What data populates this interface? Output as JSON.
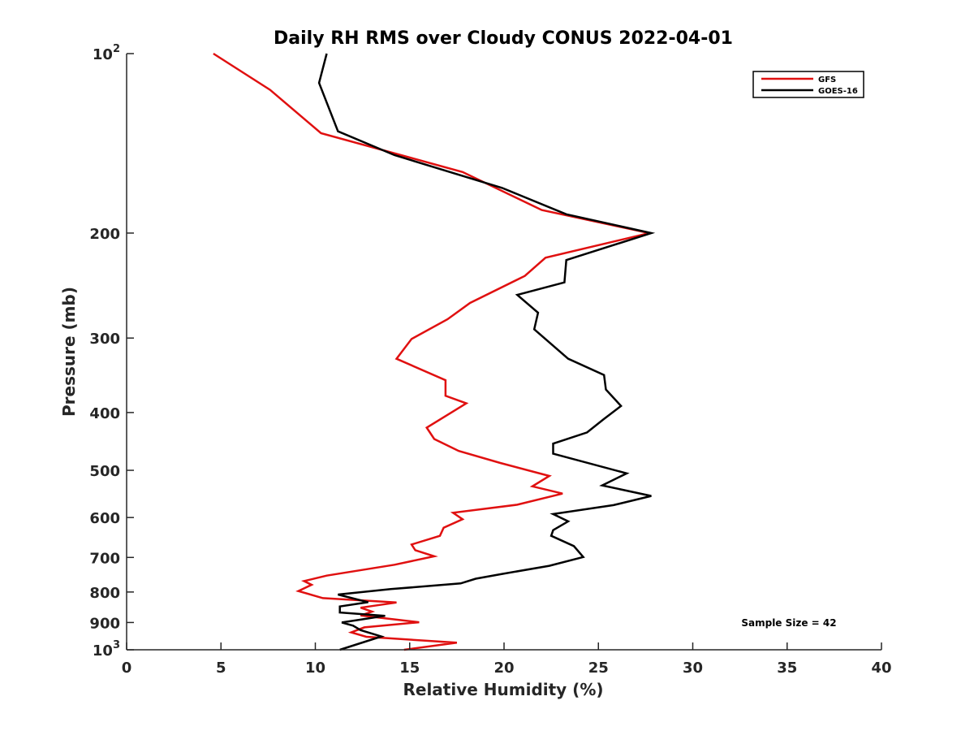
{
  "chart_data": {
    "type": "line",
    "title": "Daily RH RMS over Cloudy CONUS 2022-04-01",
    "xlabel": "Relative Humidity (%)",
    "ylabel": "Pressure (mb)",
    "xlim": [
      0,
      40
    ],
    "ylim": [
      100,
      1000
    ],
    "y_scale": "log",
    "y_reversed": true,
    "grid": false,
    "legend_position": "top-right",
    "annotation": "Sample Size = 42",
    "x_ticks": [
      "0",
      "5",
      "10",
      "15",
      "20",
      "25",
      "30",
      "35",
      "40"
    ],
    "x_tick_values": [
      0,
      5,
      10,
      15,
      20,
      25,
      30,
      35,
      40
    ],
    "y_ticks": [
      {
        "value": 100,
        "base": "10",
        "sup": "2"
      },
      {
        "value": 200,
        "base": "200",
        "sup": ""
      },
      {
        "value": 300,
        "base": "300",
        "sup": ""
      },
      {
        "value": 400,
        "base": "400",
        "sup": ""
      },
      {
        "value": 500,
        "base": "500",
        "sup": ""
      },
      {
        "value": 600,
        "base": "600",
        "sup": ""
      },
      {
        "value": 700,
        "base": "700",
        "sup": ""
      },
      {
        "value": 800,
        "base": "800",
        "sup": ""
      },
      {
        "value": 900,
        "base": "900",
        "sup": ""
      },
      {
        "value": 1000,
        "base": "10",
        "sup": "3"
      }
    ],
    "series": [
      {
        "name": "GFS",
        "color": "#e01010",
        "points": [
          [
            4.6,
            100
          ],
          [
            7.6,
            115
          ],
          [
            10.3,
            136
          ],
          [
            17.8,
            158
          ],
          [
            22.0,
            183
          ],
          [
            27.7,
            200
          ],
          [
            22.2,
            220
          ],
          [
            21.1,
            236
          ],
          [
            18.2,
            262
          ],
          [
            17.0,
            279
          ],
          [
            15.1,
            301
          ],
          [
            14.3,
            325
          ],
          [
            16.9,
            353
          ],
          [
            16.9,
            375
          ],
          [
            18.0,
            386
          ],
          [
            15.9,
            424
          ],
          [
            16.3,
            443
          ],
          [
            17.6,
            464
          ],
          [
            19.8,
            486
          ],
          [
            22.4,
            511
          ],
          [
            21.5,
            532
          ],
          [
            23.1,
            547
          ],
          [
            20.7,
            571
          ],
          [
            17.3,
            589
          ],
          [
            17.8,
            604
          ],
          [
            16.8,
            624
          ],
          [
            16.6,
            644
          ],
          [
            15.1,
            666
          ],
          [
            15.3,
            681
          ],
          [
            16.3,
            697
          ],
          [
            14.2,
            720
          ],
          [
            10.6,
            751
          ],
          [
            9.4,
            767
          ],
          [
            9.8,
            778
          ],
          [
            9.1,
            797
          ],
          [
            10.4,
            819
          ],
          [
            14.3,
            833
          ],
          [
            12.4,
            850
          ],
          [
            13.0,
            863
          ],
          [
            12.4,
            876
          ],
          [
            15.5,
            899
          ],
          [
            12.6,
            917
          ],
          [
            11.9,
            935
          ],
          [
            12.7,
            951
          ],
          [
            17.5,
            973
          ],
          [
            14.7,
            1000
          ]
        ]
      },
      {
        "name": "GOES-16",
        "color": "#000000",
        "points": [
          [
            10.6,
            100
          ],
          [
            10.2,
            112
          ],
          [
            11.2,
            135
          ],
          [
            14.2,
            148
          ],
          [
            19.9,
            168
          ],
          [
            23.3,
            186
          ],
          [
            27.8,
            200
          ],
          [
            23.3,
            222
          ],
          [
            23.2,
            242
          ],
          [
            20.7,
            254
          ],
          [
            21.8,
            272
          ],
          [
            21.6,
            290
          ],
          [
            23.4,
            325
          ],
          [
            25.3,
            346
          ],
          [
            25.4,
            366
          ],
          [
            26.2,
            390
          ],
          [
            25.3,
            410
          ],
          [
            24.4,
            432
          ],
          [
            22.6,
            451
          ],
          [
            22.6,
            469
          ],
          [
            26.5,
            506
          ],
          [
            25.2,
            530
          ],
          [
            27.8,
            552
          ],
          [
            25.8,
            572
          ],
          [
            22.6,
            592
          ],
          [
            23.4,
            609
          ],
          [
            22.6,
            630
          ],
          [
            22.5,
            644
          ],
          [
            23.7,
            670
          ],
          [
            24.2,
            699
          ],
          [
            22.4,
            723
          ],
          [
            19.9,
            746
          ],
          [
            18.5,
            760
          ],
          [
            17.7,
            774
          ],
          [
            14.0,
            791
          ],
          [
            11.2,
            808
          ],
          [
            12.8,
            832
          ],
          [
            11.3,
            846
          ],
          [
            11.3,
            866
          ],
          [
            13.7,
            877
          ],
          [
            11.4,
            900
          ],
          [
            12.0,
            911
          ],
          [
            12.4,
            927
          ],
          [
            13.5,
            950
          ],
          [
            11.3,
            1000
          ]
        ]
      }
    ]
  }
}
